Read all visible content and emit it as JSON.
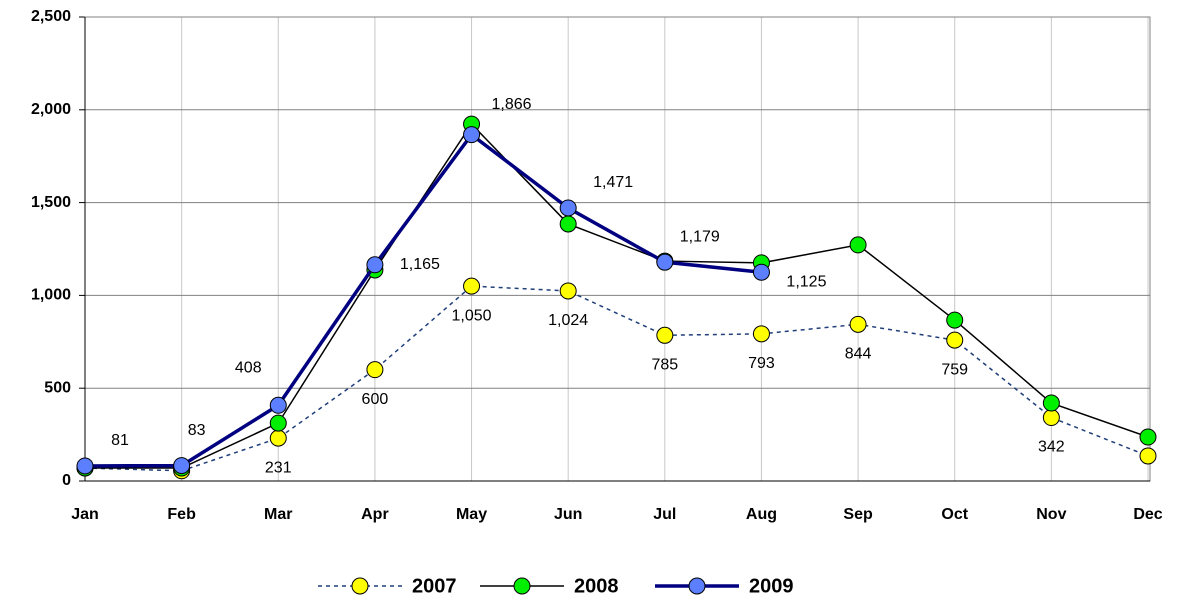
{
  "chart_data": {
    "type": "line",
    "categories": [
      "Jan",
      "Feb",
      "Mar",
      "Apr",
      "May",
      "Jun",
      "Jul",
      "Aug",
      "Sep",
      "Oct",
      "Nov",
      "Dec"
    ],
    "series": [
      {
        "name": "2007",
        "color": "#ffff00",
        "line_color": "#1f3f7a",
        "dashed": true,
        "values": [
          70,
          55,
          231,
          600,
          1050,
          1024,
          785,
          793,
          844,
          759,
          342,
          135
        ],
        "value_labels": [
          null,
          null,
          "231",
          "600",
          "1,050",
          "1,024",
          "785",
          "793",
          "844",
          "759",
          "342",
          null
        ]
      },
      {
        "name": "2008",
        "color": "#00ee00",
        "line_color": "#000000",
        "dashed": false,
        "values": [
          70,
          70,
          312,
          1137,
          1923,
          1385,
          1185,
          1175,
          1272,
          867,
          420,
          237
        ]
      },
      {
        "name": "2009",
        "color": "#5b7fff",
        "line_color": "#000080",
        "dashed": false,
        "values": [
          81,
          83,
          408,
          1165,
          1866,
          1471,
          1179,
          1125,
          null,
          null,
          null,
          null
        ],
        "value_labels": [
          "81",
          "83",
          "408",
          "1,165",
          "1,866",
          "1,471",
          "1,179",
          "1,125",
          null,
          null,
          null,
          null
        ]
      }
    ],
    "ylim": [
      0,
      2500
    ],
    "yticks": [
      0,
      500,
      {
        "value": 1000,
        "label": "1,000"
      },
      {
        "value": 1500,
        "label": "1,500"
      },
      {
        "value": 2000,
        "label": "2,000"
      },
      {
        "value": 2500,
        "label": "2,500"
      }
    ],
    "grid": true
  }
}
